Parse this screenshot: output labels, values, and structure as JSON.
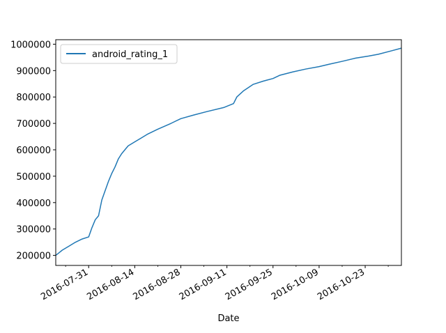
{
  "chart_data": {
    "type": "line",
    "title": "",
    "xlabel": "Date",
    "ylabel": "",
    "x_tick_labels": [
      "2016-07-31",
      "2016-08-14",
      "2016-08-28",
      "2016-09-11",
      "2016-09-25",
      "2016-10-09",
      "2016-10-23"
    ],
    "y_tick_labels": [
      "200000",
      "300000",
      "400000",
      "500000",
      "600000",
      "700000",
      "800000",
      "900000",
      "1000000"
    ],
    "ylim": [
      162000,
      1017000
    ],
    "xlim": [
      "2016-07-21",
      "2016-11-03"
    ],
    "legend": {
      "entries": [
        "android_rating_1"
      ],
      "position": "upper left"
    },
    "grid": false,
    "series": [
      {
        "name": "android_rating_1",
        "color": "#1f77b4",
        "x": [
          "2016-07-21",
          "2016-07-22",
          "2016-07-23",
          "2016-07-25",
          "2016-07-27",
          "2016-07-29",
          "2016-07-31",
          "2016-08-01",
          "2016-08-02",
          "2016-08-03",
          "2016-08-04",
          "2016-08-05",
          "2016-08-06",
          "2016-08-07",
          "2016-08-08",
          "2016-08-09",
          "2016-08-10",
          "2016-08-11",
          "2016-08-12",
          "2016-08-14",
          "2016-08-16",
          "2016-08-18",
          "2016-08-21",
          "2016-08-25",
          "2016-08-28",
          "2016-09-01",
          "2016-09-05",
          "2016-09-10",
          "2016-09-13",
          "2016-09-14",
          "2016-09-16",
          "2016-09-19",
          "2016-09-22",
          "2016-09-25",
          "2016-09-27",
          "2016-10-01",
          "2016-10-05",
          "2016-10-09",
          "2016-10-12",
          "2016-10-16",
          "2016-10-20",
          "2016-10-24",
          "2016-10-27",
          "2016-10-31",
          "2016-11-03"
        ],
        "y": [
          200000,
          210000,
          220000,
          235000,
          250000,
          262000,
          270000,
          305000,
          335000,
          350000,
          410000,
          445000,
          480000,
          510000,
          535000,
          565000,
          585000,
          600000,
          615000,
          630000,
          645000,
          660000,
          678000,
          700000,
          718000,
          732000,
          745000,
          760000,
          775000,
          800000,
          823000,
          848000,
          860000,
          870000,
          882000,
          895000,
          906000,
          915000,
          924000,
          935000,
          947000,
          955000,
          962000,
          975000,
          985000
        ]
      }
    ]
  }
}
